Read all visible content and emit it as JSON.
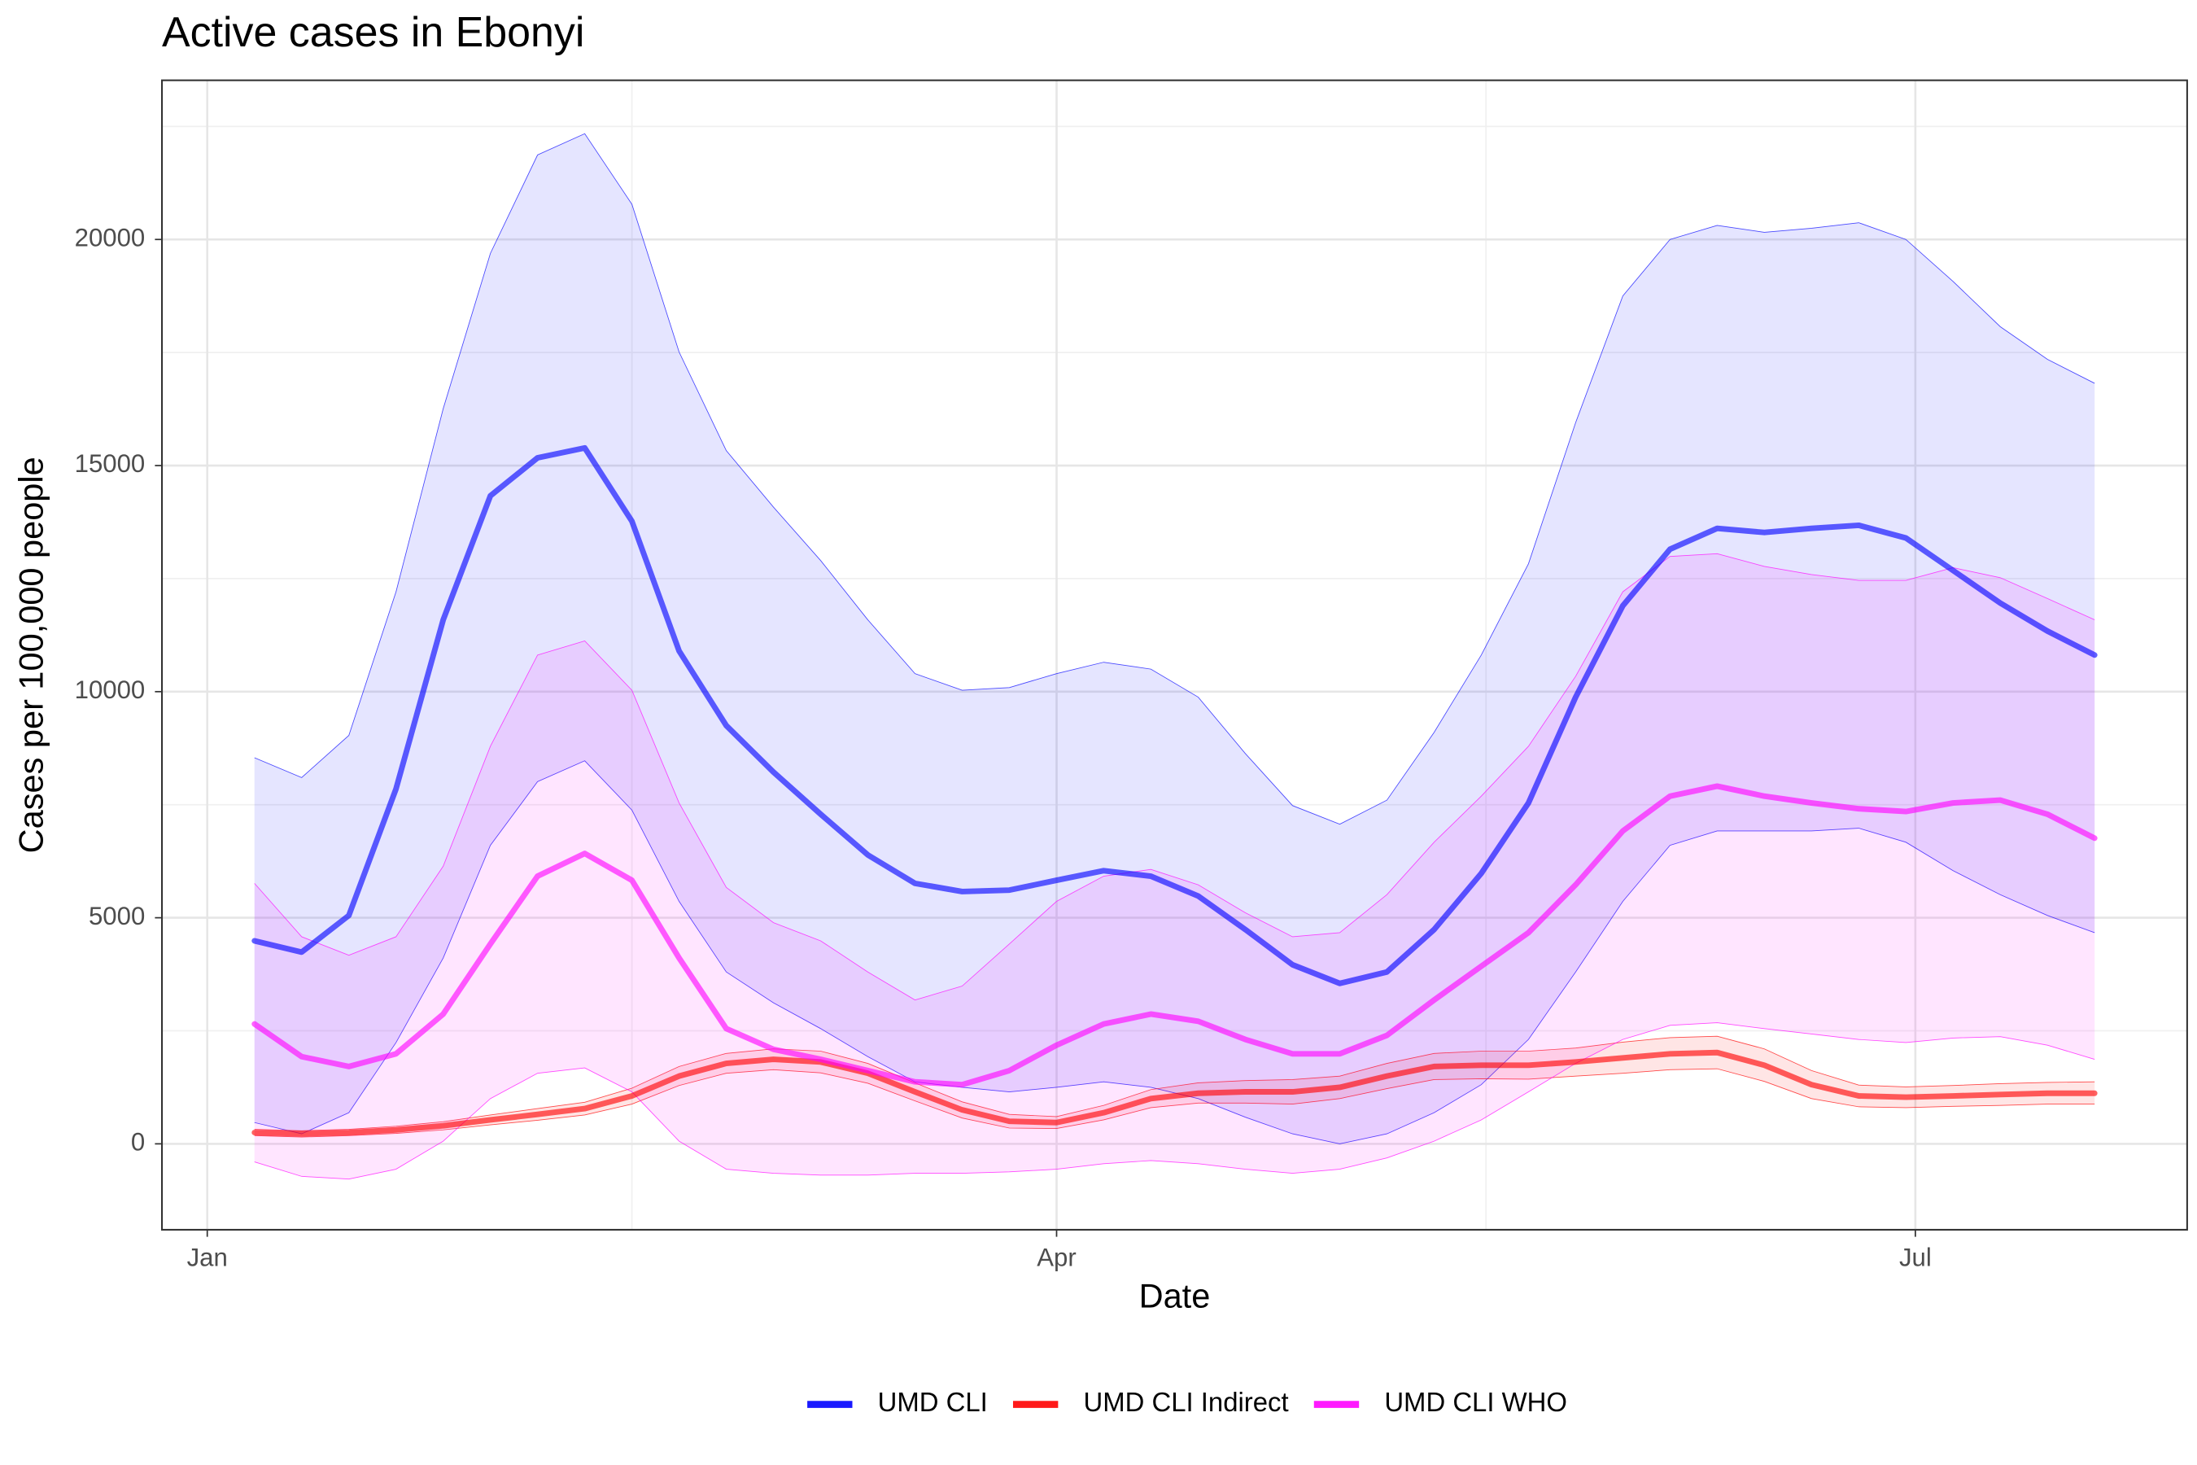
{
  "chart_data": {
    "type": "line",
    "title": "Active cases in Ebonyi",
    "x_label": "Date",
    "y_label": "Cases per 100,000 people",
    "x": [
      5,
      10,
      15,
      20,
      25,
      30,
      35,
      40,
      45,
      50,
      55,
      60,
      65,
      70,
      75,
      80,
      85,
      90,
      95,
      100,
      105,
      110,
      115,
      120,
      125,
      130,
      135,
      140,
      145,
      150,
      155,
      160,
      165,
      170,
      175,
      180,
      185,
      190,
      195,
      200
    ],
    "xlim": [
      -4.8,
      209.8
    ],
    "xticks": [
      {
        "value": 0,
        "label": "Jan"
      },
      {
        "value": 90,
        "label": "Apr"
      },
      {
        "value": 181,
        "label": "Jul"
      }
    ],
    "ylim": [
      -1900,
      23520
    ],
    "yticks": [
      0,
      5000,
      10000,
      15000,
      20000
    ],
    "grid": true,
    "legend": "bottom",
    "series": [
      {
        "name": "UMD CLI",
        "color": "#0000ff",
        "values": [
          4490,
          4240,
          5050,
          7850,
          11590,
          14330,
          15170,
          15390,
          13770,
          10900,
          9250,
          8220,
          7290,
          6390,
          5760,
          5580,
          5610,
          5830,
          6040,
          5920,
          5480,
          4740,
          3960,
          3550,
          3800,
          4740,
          5980,
          7540,
          9880,
          11900,
          13150,
          13610,
          13520,
          13610,
          13680,
          13400,
          12680,
          11960,
          11340,
          10810
        ],
        "upper": [
          8540,
          8100,
          9030,
          12210,
          16260,
          19690,
          21870,
          22340,
          20780,
          17510,
          15330,
          14080,
          12900,
          11590,
          10400,
          10030,
          10090,
          10400,
          10650,
          10500,
          9880,
          8630,
          7480,
          7070,
          7600,
          9100,
          10810,
          12830,
          15950,
          18750,
          20000,
          20310,
          20160,
          20250,
          20370,
          20000,
          19070,
          18070,
          17350,
          16820
        ],
        "lower": [
          470,
          220,
          690,
          2240,
          4110,
          6600,
          8010,
          8470,
          7380,
          5360,
          3800,
          3120,
          2550,
          1930,
          1370,
          1250,
          1150,
          1250,
          1370,
          1250,
          1000,
          590,
          220,
          0,
          220,
          690,
          1310,
          2310,
          3800,
          5360,
          6600,
          6920,
          6920,
          6920,
          6980,
          6670,
          6040,
          5510,
          5050,
          4670
        ]
      },
      {
        "name": "UMD CLI Indirect",
        "color": "#ff0000",
        "values": [
          250,
          220,
          250,
          310,
          400,
          530,
          650,
          780,
          1060,
          1500,
          1780,
          1870,
          1810,
          1560,
          1150,
          750,
          500,
          470,
          690,
          1000,
          1120,
          1150,
          1150,
          1250,
          1500,
          1710,
          1740,
          1740,
          1810,
          1900,
          1990,
          2020,
          1740,
          1310,
          1060,
          1030,
          1060,
          1090,
          1120,
          1120
        ],
        "upper": [
          320,
          290,
          320,
          390,
          490,
          640,
          780,
          920,
          1230,
          1710,
          2000,
          2100,
          2050,
          1780,
          1350,
          930,
          650,
          600,
          850,
          1200,
          1350,
          1400,
          1420,
          1500,
          1780,
          2000,
          2050,
          2050,
          2120,
          2250,
          2350,
          2380,
          2100,
          1620,
          1300,
          1260,
          1290,
          1330,
          1360,
          1370
        ],
        "lower": [
          180,
          150,
          180,
          230,
          310,
          420,
          520,
          640,
          880,
          1290,
          1560,
          1640,
          1570,
          1340,
          950,
          570,
          350,
          340,
          530,
          800,
          900,
          900,
          880,
          1000,
          1220,
          1420,
          1440,
          1430,
          1500,
          1560,
          1640,
          1660,
          1380,
          1000,
          820,
          800,
          830,
          850,
          880,
          880
        ]
      },
      {
        "name": "UMD CLI WHO",
        "color": "#ff00ff",
        "values": [
          2650,
          1930,
          1710,
          1990,
          2870,
          4420,
          5920,
          6420,
          5830,
          4110,
          2550,
          2090,
          1870,
          1620,
          1370,
          1310,
          1620,
          2180,
          2650,
          2870,
          2710,
          2310,
          1990,
          1990,
          2400,
          3180,
          3930,
          4670,
          5730,
          6920,
          7690,
          7910,
          7690,
          7540,
          7410,
          7350,
          7540,
          7600,
          7290,
          6760
        ],
        "upper": [
          5760,
          4580,
          4170,
          4580,
          6140,
          8790,
          10810,
          11120,
          10030,
          7540,
          5670,
          4890,
          4490,
          3800,
          3180,
          3490,
          4420,
          5360,
          5920,
          6070,
          5730,
          5110,
          4580,
          4670,
          5510,
          6670,
          7690,
          8790,
          10340,
          12210,
          12990,
          13050,
          12770,
          12590,
          12460,
          12460,
          12740,
          12520,
          12060,
          11590
        ],
        "lower": [
          -400,
          -720,
          -780,
          -560,
          60,
          1000,
          1560,
          1680,
          1150,
          60,
          -560,
          -650,
          -690,
          -690,
          -650,
          -650,
          -620,
          -560,
          -440,
          -370,
          -440,
          -560,
          -650,
          -560,
          -310,
          60,
          530,
          1150,
          1780,
          2310,
          2620,
          2680,
          2550,
          2430,
          2310,
          2240,
          2340,
          2370,
          2180,
          1870
        ]
      }
    ]
  }
}
